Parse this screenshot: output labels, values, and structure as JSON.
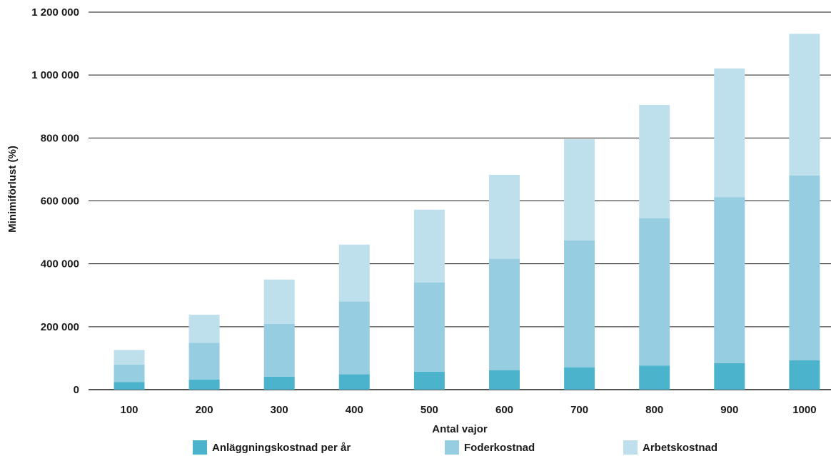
{
  "chart_data": {
    "type": "bar",
    "stacked": true,
    "categories": [
      "100",
      "200",
      "300",
      "400",
      "500",
      "600",
      "700",
      "800",
      "900",
      "1000"
    ],
    "series": [
      {
        "name": "Anläggningskostnad per år",
        "color": "#4bb4cc",
        "values": [
          24000,
          32000,
          41000,
          49000,
          57000,
          62000,
          71000,
          76000,
          84000,
          93000
        ]
      },
      {
        "name": "Foderkostnad",
        "color": "#96cde0",
        "values": [
          56000,
          117000,
          168000,
          231000,
          284000,
          354000,
          403000,
          469000,
          528000,
          588000
        ]
      },
      {
        "name": "Arbetskostnad",
        "color": "#bde0ec",
        "values": [
          46000,
          89000,
          141000,
          181000,
          231000,
          267000,
          322000,
          360000,
          409000,
          450000
        ]
      }
    ],
    "xlabel": "Antal vajor",
    "ylabel": "Minimiförlust (%)",
    "ylim": [
      0,
      1200000
    ],
    "yticks": [
      {
        "value": 0,
        "label": "0"
      },
      {
        "value": 200000,
        "label": "200 000"
      },
      {
        "value": 400000,
        "label": "400 000"
      },
      {
        "value": 600000,
        "label": "600 000"
      },
      {
        "value": 800000,
        "label": "800 000"
      },
      {
        "value": 1000000,
        "label": "1 000 000"
      },
      {
        "value": 1200000,
        "label": "1 200 000"
      }
    ],
    "grid": true,
    "legend_position": "bottom"
  }
}
